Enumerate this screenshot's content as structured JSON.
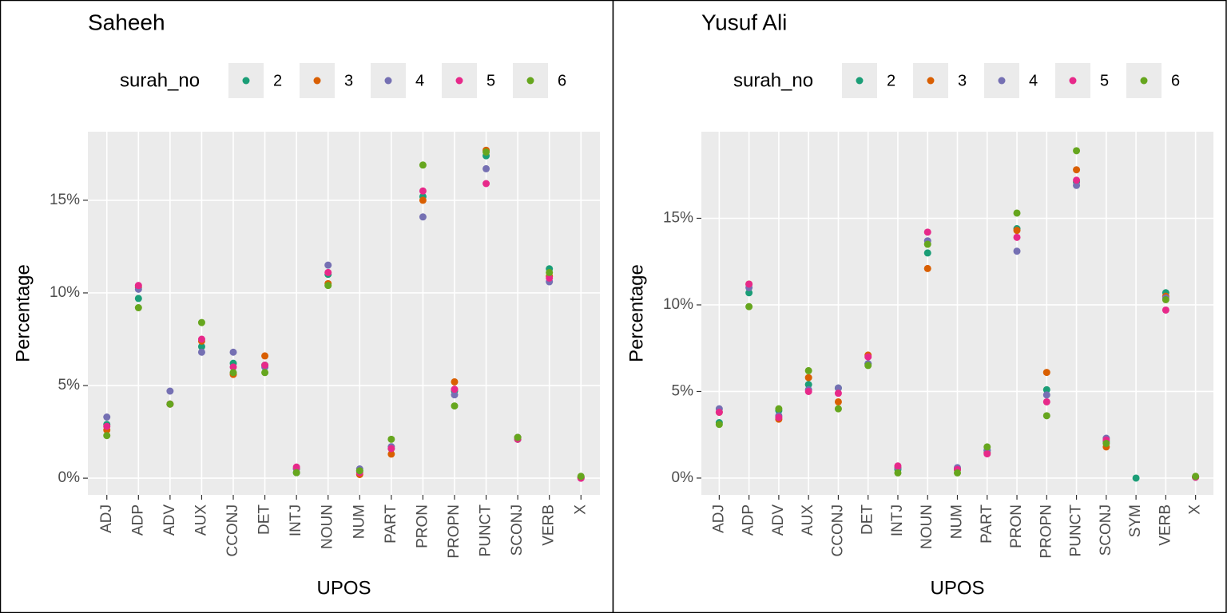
{
  "chart_data": [
    {
      "type": "scatter",
      "title": "Saheeh",
      "x_label": "UPOS",
      "y_label": "Percentage",
      "legend_title": "surah_no",
      "categories": [
        "ADJ",
        "ADP",
        "ADV",
        "AUX",
        "CCONJ",
        "DET",
        "INTJ",
        "NOUN",
        "NUM",
        "PART",
        "PRON",
        "PROPN",
        "PUNCT",
        "SCONJ",
        "VERB",
        "X"
      ],
      "series": [
        {
          "name": "2",
          "color": "#1b9e77",
          "values": [
            2.9,
            9.7,
            4.0,
            7.1,
            6.2,
            6.1,
            0.3,
            11.0,
            0.4,
            1.6,
            15.2,
            4.7,
            17.4,
            2.1,
            11.3,
            0.05
          ]
        },
        {
          "name": "3",
          "color": "#d95f02",
          "values": [
            2.6,
            10.3,
            4.0,
            7.4,
            5.6,
            6.6,
            0.5,
            10.5,
            0.2,
            1.3,
            15.0,
            5.2,
            17.7,
            2.2,
            10.9,
            0.05
          ]
        },
        {
          "name": "4",
          "color": "#7570b3",
          "values": [
            3.3,
            10.2,
            4.7,
            6.8,
            6.8,
            6.0,
            0.5,
            11.5,
            0.5,
            1.7,
            14.1,
            4.5,
            16.7,
            2.2,
            10.6,
            0.0
          ]
        },
        {
          "name": "5",
          "color": "#e7298a",
          "values": [
            2.8,
            10.4,
            4.0,
            7.5,
            6.0,
            6.1,
            0.6,
            11.1,
            0.3,
            1.6,
            15.5,
            4.8,
            15.9,
            2.1,
            10.8,
            0.0
          ]
        },
        {
          "name": "6",
          "color": "#66a61e",
          "values": [
            2.3,
            9.2,
            4.0,
            8.4,
            5.7,
            5.7,
            0.3,
            10.4,
            0.4,
            2.1,
            16.9,
            3.9,
            17.6,
            2.2,
            11.1,
            0.1
          ]
        }
      ],
      "ylim": [
        -0.9,
        18.7
      ],
      "yticks": [
        {
          "value": 0,
          "label": "0%"
        },
        {
          "value": 5,
          "label": "5%"
        },
        {
          "value": 10,
          "label": "10%"
        },
        {
          "value": 15,
          "label": "15%"
        }
      ],
      "grid": true
    },
    {
      "type": "scatter",
      "title": "Yusuf Ali",
      "x_label": "UPOS",
      "y_label": "Percentage",
      "legend_title": "surah_no",
      "categories": [
        "ADJ",
        "ADP",
        "ADV",
        "AUX",
        "CCONJ",
        "DET",
        "INTJ",
        "NOUN",
        "NUM",
        "PART",
        "PRON",
        "PROPN",
        "PUNCT",
        "SCONJ",
        "SYM",
        "VERB",
        "X"
      ],
      "series": [
        {
          "name": "2",
          "color": "#1b9e77",
          "values": [
            3.2,
            10.7,
            3.9,
            5.4,
            5.2,
            6.6,
            0.5,
            13.0,
            0.5,
            1.6,
            14.4,
            5.1,
            17.1,
            2.1,
            0.0,
            10.7,
            0.05
          ]
        },
        {
          "name": "3",
          "color": "#d95f02",
          "values": [
            3.8,
            11.2,
            3.4,
            5.8,
            4.4,
            7.1,
            0.6,
            12.1,
            0.5,
            1.5,
            14.3,
            6.1,
            17.8,
            1.8,
            null,
            10.5,
            0.05
          ]
        },
        {
          "name": "4",
          "color": "#7570b3",
          "values": [
            4.0,
            11.0,
            3.6,
            5.1,
            5.2,
            6.6,
            0.6,
            13.7,
            0.6,
            1.6,
            13.1,
            4.8,
            16.9,
            2.3,
            null,
            10.4,
            0.05
          ]
        },
        {
          "name": "5",
          "color": "#e7298a",
          "values": [
            3.8,
            11.2,
            3.5,
            5.0,
            4.9,
            7.0,
            0.7,
            14.2,
            0.5,
            1.4,
            13.9,
            4.4,
            17.2,
            2.2,
            null,
            9.7,
            0.05
          ]
        },
        {
          "name": "6",
          "color": "#66a61e",
          "values": [
            3.1,
            9.9,
            4.0,
            6.2,
            4.0,
            6.5,
            0.3,
            13.5,
            0.3,
            1.8,
            15.3,
            3.6,
            18.9,
            2.0,
            null,
            10.3,
            0.1
          ]
        }
      ],
      "ylim": [
        -0.97,
        20.0
      ],
      "yticks": [
        {
          "value": 0,
          "label": "0%"
        },
        {
          "value": 5,
          "label": "5%"
        },
        {
          "value": 10,
          "label": "10%"
        },
        {
          "value": 15,
          "label": "15%"
        }
      ],
      "grid": true
    }
  ]
}
